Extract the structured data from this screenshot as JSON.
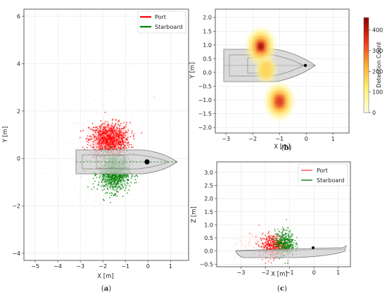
{
  "chart_data": [
    {
      "id": "a",
      "type": "scatter",
      "caption": "a",
      "xlabel": "X [m]",
      "ylabel": "Y [m]",
      "xlim": [
        -5.5,
        1.8
      ],
      "ylim": [
        -4.3,
        6.3
      ],
      "xticks": [
        -5,
        -4,
        -3,
        -2,
        -1,
        0,
        1
      ],
      "yticks": [
        -4,
        -2,
        0,
        2,
        4,
        6
      ],
      "grid": true,
      "legend_position": "top-right",
      "series": [
        {
          "name": "Port",
          "color": "#ff0000",
          "clusters": [
            {
              "x": -1.7,
              "y": 0.8,
              "sx": 0.45,
              "sy": 0.35
            }
          ]
        },
        {
          "name": "Starboard",
          "color": "#008000",
          "clusters": [
            {
              "x": -1.5,
              "y": -0.6,
              "sx": 0.35,
              "sy": 0.4
            }
          ]
        }
      ],
      "markers": [
        {
          "x": 0,
          "y": 0,
          "color": "#000000"
        }
      ]
    },
    {
      "id": "b",
      "type": "heatmap",
      "caption": "b",
      "xlabel": "X [m]",
      "ylabel": "Y [m]",
      "xlim": [
        -3.4,
        1.6
      ],
      "ylim": [
        -2.2,
        2.3
      ],
      "xticks": [
        -3,
        -2,
        -1,
        0,
        1
      ],
      "yticks": [
        -2.0,
        -1.5,
        -1.0,
        -0.5,
        0.0,
        0.5,
        1.0,
        1.5,
        2.0
      ],
      "colorbar": {
        "label": "Detection Count",
        "min": 0,
        "max": 460,
        "ticks": [
          0,
          100,
          200,
          300,
          400
        ]
      },
      "hotspots": [
        {
          "x": -1.7,
          "y": 0.95,
          "peak": 460
        },
        {
          "x": -1.0,
          "y": -1.05,
          "peak": 330
        },
        {
          "x": -1.5,
          "y": 0.1,
          "peak": 90
        }
      ],
      "markers": [
        {
          "x": 0,
          "y": 0,
          "color": "#000000"
        }
      ]
    },
    {
      "id": "c",
      "type": "scatter",
      "caption": "c",
      "xlabel": "X [m]",
      "ylabel": "Z [m]",
      "xlim": [
        -4.0,
        1.5
      ],
      "ylim": [
        -0.6,
        3.4
      ],
      "xticks": [
        -3,
        -2,
        -1,
        0,
        1
      ],
      "yticks": [
        -0.5,
        0.0,
        0.5,
        1.0,
        1.5,
        2.0,
        2.5,
        3.0
      ],
      "grid": true,
      "legend_position": "top-right",
      "series": [
        {
          "name": "Port",
          "color": "#ff0000",
          "clusters": [
            {
              "x": -1.7,
              "y": 0.2,
              "sx": 0.28,
              "sy": 0.22
            }
          ]
        },
        {
          "name": "Starboard",
          "color": "#008000",
          "clusters": [
            {
              "x": -1.2,
              "y": 0.3,
              "sx": 0.2,
              "sy": 0.25
            }
          ]
        }
      ],
      "markers": [
        {
          "x": 0,
          "y": 0,
          "color": "#000000"
        }
      ]
    }
  ]
}
